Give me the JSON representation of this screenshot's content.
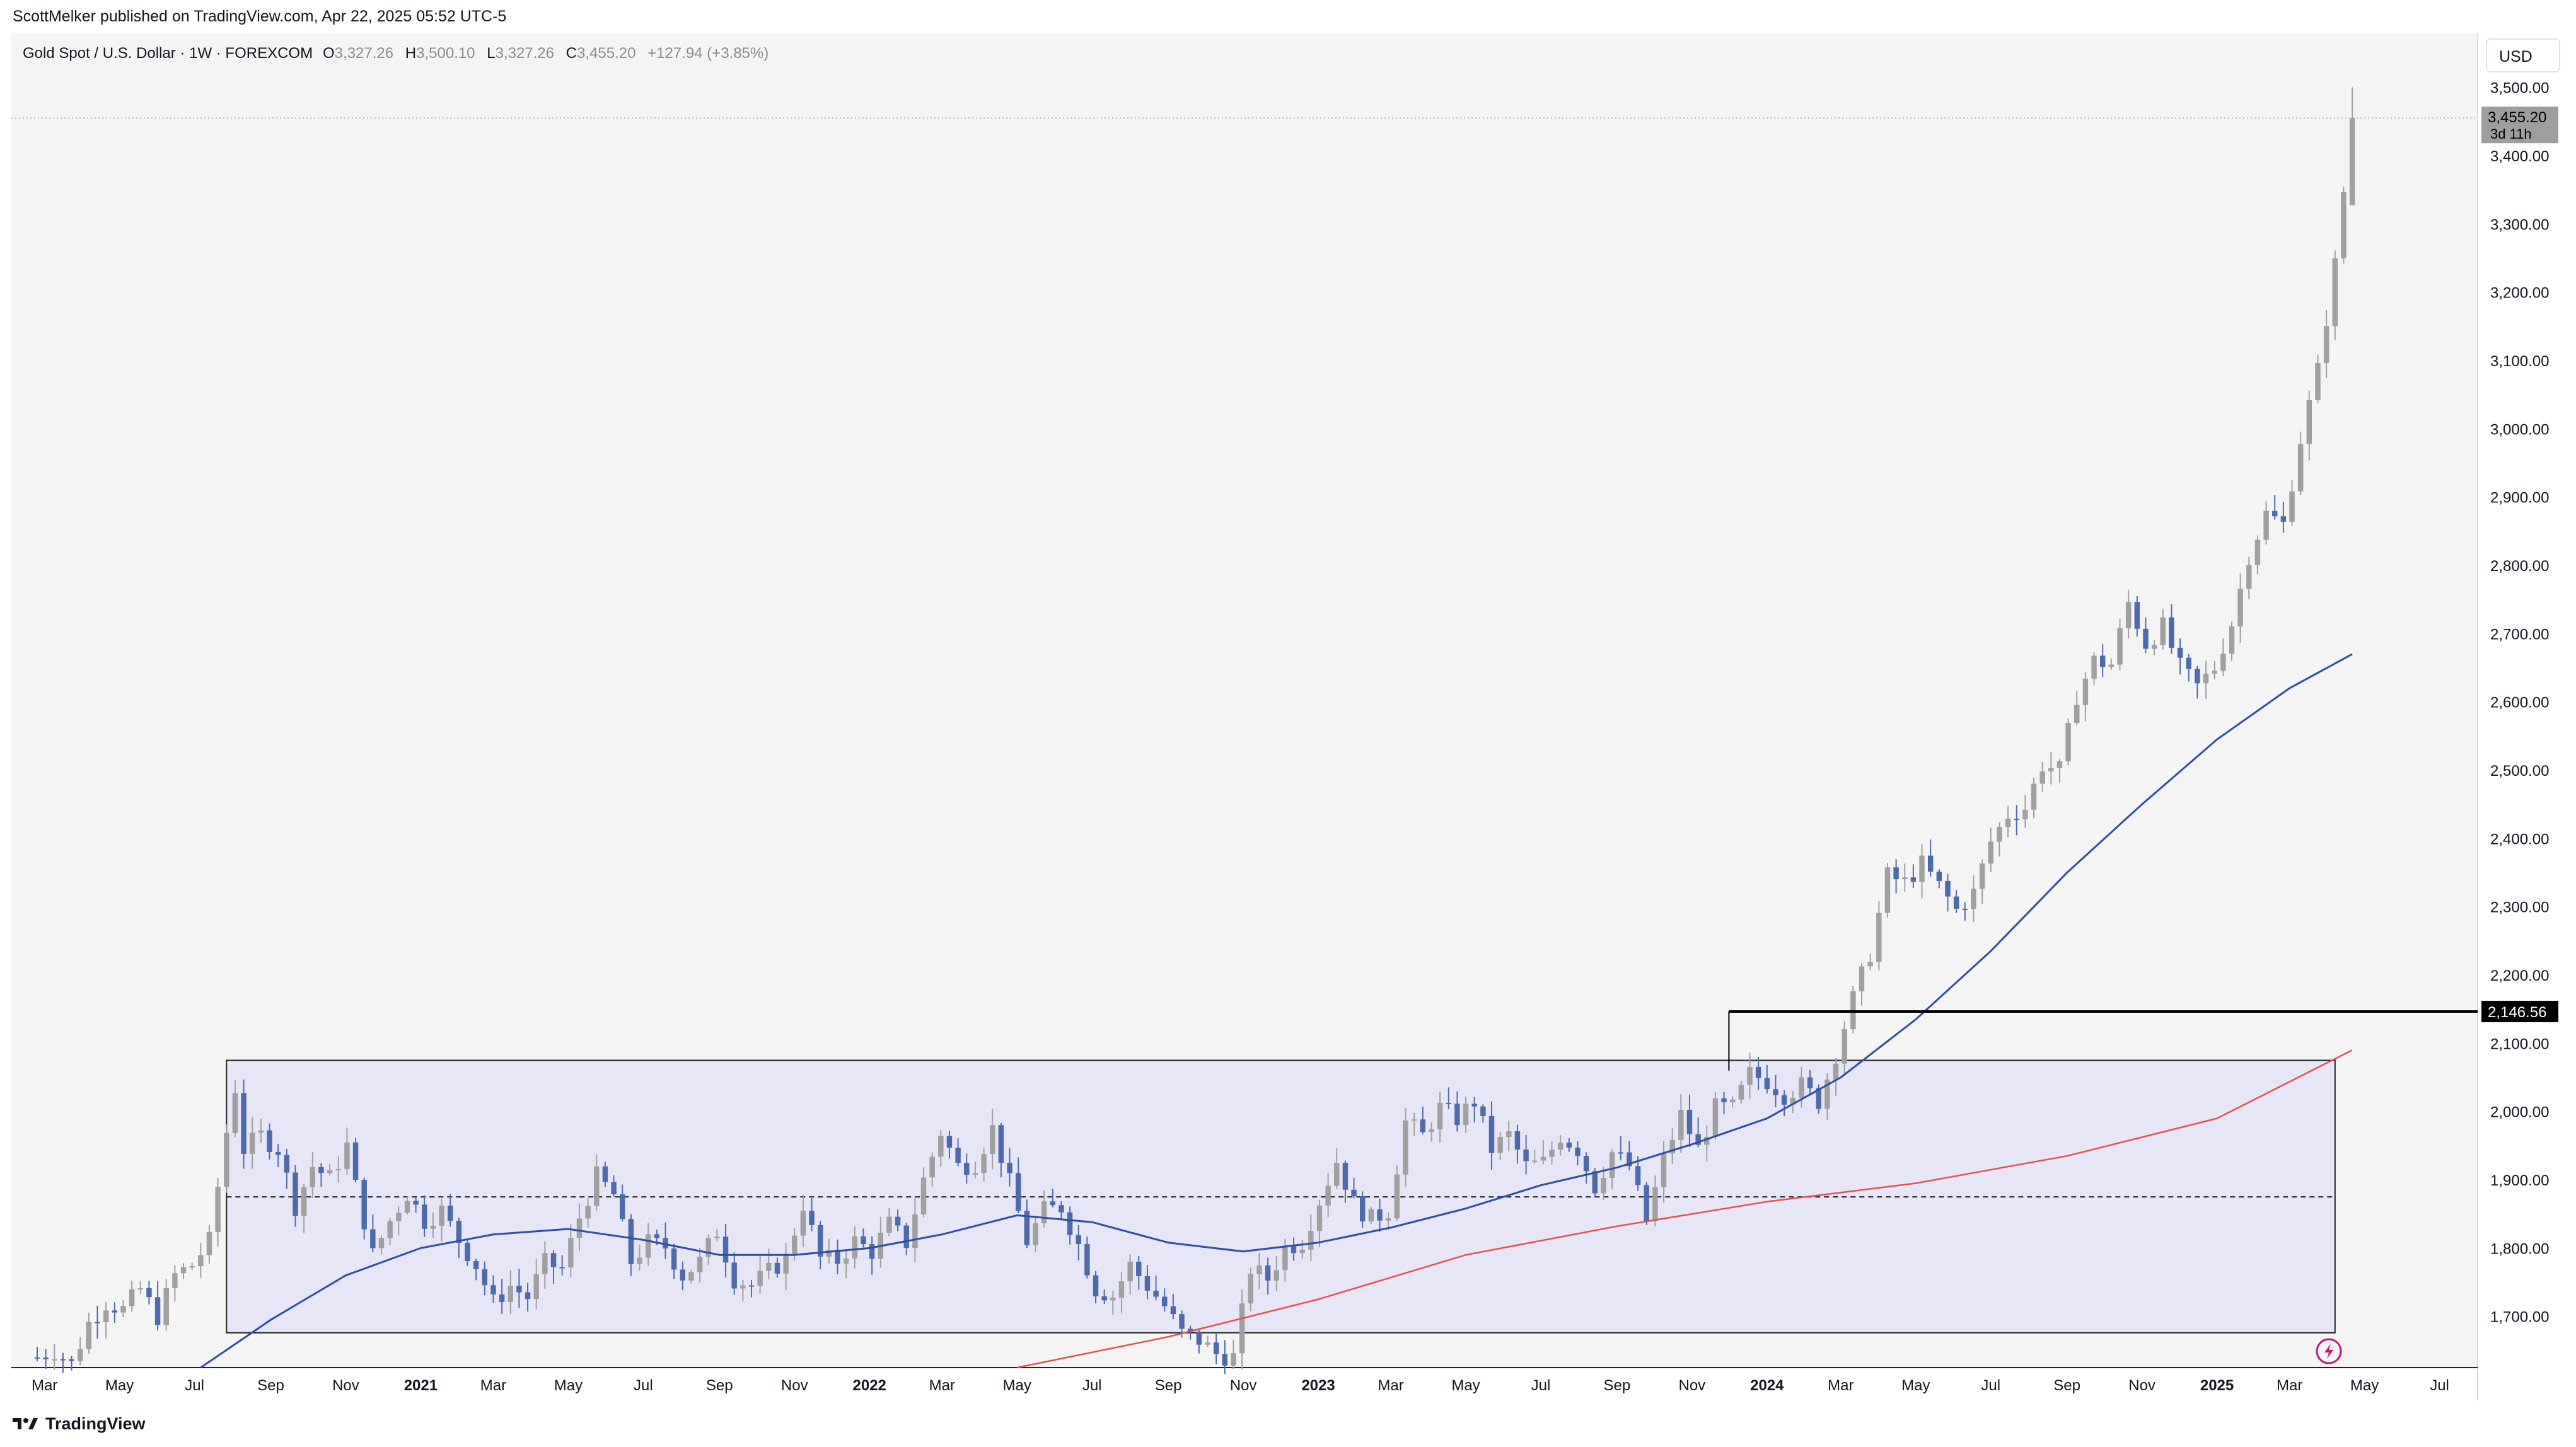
{
  "published": {
    "author": "ScottMelker",
    "text": "ScottMelker published on TradingView.com, Apr 22, 2025 05:52 UTC-5"
  },
  "legend": {
    "symbol": "Gold Spot / U.S. Dollar · 1W · FOREXCOM",
    "o_label": "O",
    "o_value": "3,327.26",
    "h_label": "H",
    "h_value": "3,500.10",
    "l_label": "L",
    "l_value": "3,327.26",
    "c_label": "C",
    "c_value": "3,455.20",
    "change": "+127.94 (+3.85%)"
  },
  "currency": "USD",
  "footer": {
    "brand": "TradingView"
  },
  "colors": {
    "background": "#f4f4f4",
    "bull": "#a0a0a0",
    "bear": "#4f6aa8",
    "ma_fast": "#2f4fa0",
    "ma_slow": "#e25050",
    "range_fill": "#e7e6f7",
    "level_line": "#000000"
  },
  "chart_data": {
    "type": "candlestick",
    "interval": "1W",
    "x_ticks": [
      {
        "date": "2020-03",
        "label": "Mar"
      },
      {
        "date": "2020-05",
        "label": "May"
      },
      {
        "date": "2020-07",
        "label": "Jul"
      },
      {
        "date": "2020-09",
        "label": "Sep"
      },
      {
        "date": "2020-11",
        "label": "Nov"
      },
      {
        "date": "2021-01",
        "label": "2021",
        "bold": true
      },
      {
        "date": "2021-03",
        "label": "Mar"
      },
      {
        "date": "2021-05",
        "label": "May"
      },
      {
        "date": "2021-07",
        "label": "Jul"
      },
      {
        "date": "2021-09",
        "label": "Sep"
      },
      {
        "date": "2021-11",
        "label": "Nov"
      },
      {
        "date": "2022-01",
        "label": "2022",
        "bold": true
      },
      {
        "date": "2022-03",
        "label": "Mar"
      },
      {
        "date": "2022-05",
        "label": "May"
      },
      {
        "date": "2022-07",
        "label": "Jul"
      },
      {
        "date": "2022-09",
        "label": "Sep"
      },
      {
        "date": "2022-11",
        "label": "Nov"
      },
      {
        "date": "2023-01",
        "label": "2023",
        "bold": true
      },
      {
        "date": "2023-03",
        "label": "Mar"
      },
      {
        "date": "2023-05",
        "label": "May"
      },
      {
        "date": "2023-07",
        "label": "Jul"
      },
      {
        "date": "2023-09",
        "label": "Sep"
      },
      {
        "date": "2023-11",
        "label": "Nov"
      },
      {
        "date": "2024-01",
        "label": "2024",
        "bold": true
      },
      {
        "date": "2024-03",
        "label": "Mar"
      },
      {
        "date": "2024-05",
        "label": "May"
      },
      {
        "date": "2024-07",
        "label": "Jul"
      },
      {
        "date": "2024-09",
        "label": "Sep"
      },
      {
        "date": "2024-11",
        "label": "Nov"
      },
      {
        "date": "2025-01",
        "label": "2025",
        "bold": true
      },
      {
        "date": "2025-03",
        "label": "Mar"
      },
      {
        "date": "2025-05",
        "label": "May"
      },
      {
        "date": "2025-07",
        "label": "Jul"
      }
    ],
    "y_ticks": [
      "1,700.00",
      "1,800.00",
      "1,900.00",
      "2,000.00",
      "2,100.00",
      "2,200.00",
      "2,300.00",
      "2,400.00",
      "2,500.00",
      "2,600.00",
      "2,700.00",
      "2,800.00",
      "2,900.00",
      "3,000.00",
      "3,100.00",
      "3,200.00",
      "3,300.00",
      "3,400.00",
      "3,500.00"
    ],
    "ylim": [
      1625,
      3580
    ],
    "xlim": [
      "2020-02-03",
      "2025-08-01"
    ],
    "closes": [
      [
        "2020-02-24",
        1640
      ],
      [
        "2020-03-09",
        1650
      ],
      [
        "2020-03-23",
        1630
      ],
      [
        "2020-04-06",
        1690
      ],
      [
        "2020-04-20",
        1720
      ],
      [
        "2020-05-04",
        1710
      ],
      [
        "2020-05-18",
        1740
      ],
      [
        "2020-06-01",
        1700
      ],
      [
        "2020-06-15",
        1760
      ],
      [
        "2020-06-29",
        1775
      ],
      [
        "2020-07-13",
        1810
      ],
      [
        "2020-07-27",
        1970
      ],
      [
        "2020-08-03",
        2035
      ],
      [
        "2020-08-10",
        1945
      ],
      [
        "2020-08-24",
        1965
      ],
      [
        "2020-09-07",
        1945
      ],
      [
        "2020-09-21",
        1862
      ],
      [
        "2020-10-05",
        1920
      ],
      [
        "2020-10-19",
        1902
      ],
      [
        "2020-11-02",
        1950
      ],
      [
        "2020-11-09",
        1890
      ],
      [
        "2020-11-23",
        1790
      ],
      [
        "2020-12-07",
        1840
      ],
      [
        "2020-12-21",
        1880
      ],
      [
        "2021-01-04",
        1840
      ],
      [
        "2021-01-18",
        1855
      ],
      [
        "2021-02-01",
        1812
      ],
      [
        "2021-02-15",
        1775
      ],
      [
        "2021-03-01",
        1720
      ],
      [
        "2021-03-15",
        1745
      ],
      [
        "2021-03-29",
        1728
      ],
      [
        "2021-04-12",
        1778
      ],
      [
        "2021-04-26",
        1770
      ],
      [
        "2021-05-10",
        1845
      ],
      [
        "2021-05-24",
        1905
      ],
      [
        "2021-06-07",
        1878
      ],
      [
        "2021-06-21",
        1780
      ],
      [
        "2021-07-05",
        1808
      ],
      [
        "2021-07-19",
        1802
      ],
      [
        "2021-08-02",
        1760
      ],
      [
        "2021-08-16",
        1780
      ],
      [
        "2021-08-30",
        1825
      ],
      [
        "2021-09-13",
        1755
      ],
      [
        "2021-09-27",
        1745
      ],
      [
        "2021-10-11",
        1765
      ],
      [
        "2021-10-25",
        1785
      ],
      [
        "2021-11-08",
        1865
      ],
      [
        "2021-11-22",
        1785
      ],
      [
        "2021-12-06",
        1782
      ],
      [
        "2021-12-20",
        1810
      ],
      [
        "2022-01-03",
        1795
      ],
      [
        "2022-01-17",
        1835
      ],
      [
        "2022-01-31",
        1808
      ],
      [
        "2022-02-14",
        1900
      ],
      [
        "2022-02-28",
        1970
      ],
      [
        "2022-03-14",
        1920
      ],
      [
        "2022-03-28",
        1925
      ],
      [
        "2022-04-11",
        1975
      ],
      [
        "2022-04-25",
        1895
      ],
      [
        "2022-05-09",
        1810
      ],
      [
        "2022-05-23",
        1855
      ],
      [
        "2022-06-06",
        1860
      ],
      [
        "2022-06-20",
        1805
      ],
      [
        "2022-07-04",
        1740
      ],
      [
        "2022-07-18",
        1730
      ],
      [
        "2022-08-01",
        1775
      ],
      [
        "2022-08-15",
        1745
      ],
      [
        "2022-08-29",
        1715
      ],
      [
        "2022-09-12",
        1675
      ],
      [
        "2022-09-26",
        1665
      ],
      [
        "2022-10-10",
        1645
      ],
      [
        "2022-10-24",
        1640
      ],
      [
        "2022-11-07",
        1770
      ],
      [
        "2022-11-21",
        1755
      ],
      [
        "2022-12-05",
        1800
      ],
      [
        "2022-12-19",
        1810
      ],
      [
        "2023-01-02",
        1870
      ],
      [
        "2023-01-16",
        1928
      ],
      [
        "2023-01-30",
        1865
      ],
      [
        "2023-02-13",
        1842
      ],
      [
        "2023-02-27",
        1855
      ],
      [
        "2023-03-13",
        1985
      ],
      [
        "2023-03-27",
        1965
      ],
      [
        "2023-04-10",
        2005
      ],
      [
        "2023-04-24",
        1990
      ],
      [
        "2023-05-08",
        2015
      ],
      [
        "2023-05-22",
        1945
      ],
      [
        "2023-06-05",
        1965
      ],
      [
        "2023-06-19",
        1920
      ],
      [
        "2023-07-03",
        1925
      ],
      [
        "2023-07-17",
        1965
      ],
      [
        "2023-07-31",
        1945
      ],
      [
        "2023-08-14",
        1890
      ],
      [
        "2023-08-28",
        1940
      ],
      [
        "2023-09-11",
        1920
      ],
      [
        "2023-09-25",
        1840
      ],
      [
        "2023-10-09",
        1930
      ],
      [
        "2023-10-23",
        1995
      ],
      [
        "2023-11-06",
        1945
      ],
      [
        "2023-11-20",
        2005
      ],
      [
        "2023-12-04",
        2005
      ],
      [
        "2023-12-18",
        2055
      ],
      [
        "2024-01-01",
        2045
      ],
      [
        "2024-01-15",
        2025
      ],
      [
        "2024-01-29",
        2038
      ],
      [
        "2024-02-12",
        2015
      ],
      [
        "2024-02-26",
        2085
      ],
      [
        "2024-03-11",
        2165
      ],
      [
        "2024-03-25",
        2232
      ],
      [
        "2024-04-08",
        2345
      ],
      [
        "2024-04-22",
        2335
      ],
      [
        "2024-05-06",
        2362
      ],
      [
        "2024-05-20",
        2330
      ],
      [
        "2024-06-03",
        2295
      ],
      [
        "2024-06-17",
        2320
      ],
      [
        "2024-07-01",
        2395
      ],
      [
        "2024-07-15",
        2435
      ],
      [
        "2024-07-29",
        2445
      ],
      [
        "2024-08-12",
        2508
      ],
      [
        "2024-08-26",
        2500
      ],
      [
        "2024-09-09",
        2610
      ],
      [
        "2024-09-23",
        2660
      ],
      [
        "2024-10-07",
        2655
      ],
      [
        "2024-10-21",
        2745
      ],
      [
        "2024-11-04",
        2685
      ],
      [
        "2024-11-18",
        2710
      ],
      [
        "2024-12-02",
        2650
      ],
      [
        "2024-12-16",
        2622
      ],
      [
        "2024-12-30",
        2650
      ],
      [
        "2025-01-13",
        2715
      ],
      [
        "2025-01-27",
        2815
      ],
      [
        "2025-02-10",
        2875
      ],
      [
        "2025-02-24",
        2860
      ],
      [
        "2025-03-10",
        2985
      ],
      [
        "2025-03-24",
        3085
      ],
      [
        "2025-04-07",
        3240
      ],
      [
        "2025-04-21",
        3455.2
      ]
    ],
    "ma_fast": [
      [
        "2020-07-06",
        1625
      ],
      [
        "2020-09-01",
        1695
      ],
      [
        "2020-11-01",
        1760
      ],
      [
        "2021-01-01",
        1800
      ],
      [
        "2021-03-01",
        1820
      ],
      [
        "2021-05-01",
        1828
      ],
      [
        "2021-07-01",
        1812
      ],
      [
        "2021-09-01",
        1790
      ],
      [
        "2021-11-01",
        1790
      ],
      [
        "2022-01-01",
        1800
      ],
      [
        "2022-03-01",
        1820
      ],
      [
        "2022-05-01",
        1848
      ],
      [
        "2022-07-01",
        1838
      ],
      [
        "2022-09-01",
        1808
      ],
      [
        "2022-11-01",
        1795
      ],
      [
        "2023-01-01",
        1808
      ],
      [
        "2023-03-01",
        1830
      ],
      [
        "2023-05-01",
        1858
      ],
      [
        "2023-07-01",
        1892
      ],
      [
        "2023-09-01",
        1918
      ],
      [
        "2023-11-01",
        1952
      ],
      [
        "2024-01-01",
        1990
      ],
      [
        "2024-03-01",
        2050
      ],
      [
        "2024-05-01",
        2135
      ],
      [
        "2024-07-01",
        2235
      ],
      [
        "2024-09-01",
        2350
      ],
      [
        "2024-11-01",
        2450
      ],
      [
        "2025-01-01",
        2545
      ],
      [
        "2025-03-01",
        2620
      ],
      [
        "2025-04-21",
        2670
      ]
    ],
    "ma_slow": [
      [
        "2022-05-01",
        1625
      ],
      [
        "2022-09-01",
        1670
      ],
      [
        "2023-01-01",
        1725
      ],
      [
        "2023-05-01",
        1790
      ],
      [
        "2023-09-01",
        1832
      ],
      [
        "2024-01-01",
        1868
      ],
      [
        "2024-05-01",
        1895
      ],
      [
        "2024-09-01",
        1935
      ],
      [
        "2025-01-01",
        1990
      ],
      [
        "2025-04-21",
        2090
      ]
    ],
    "range_box": {
      "x0": "2020-07-27",
      "x1": "2025-04-07",
      "y_top": 2075,
      "y_bottom": 1676,
      "y_mid": 1875
    },
    "breakout_level": {
      "value": 2146.56,
      "label": "2,146.56",
      "x0": "2023-12-01"
    },
    "last_price": {
      "value": 3455.2,
      "label": "3,455.20",
      "countdown": "3d 11h"
    }
  }
}
